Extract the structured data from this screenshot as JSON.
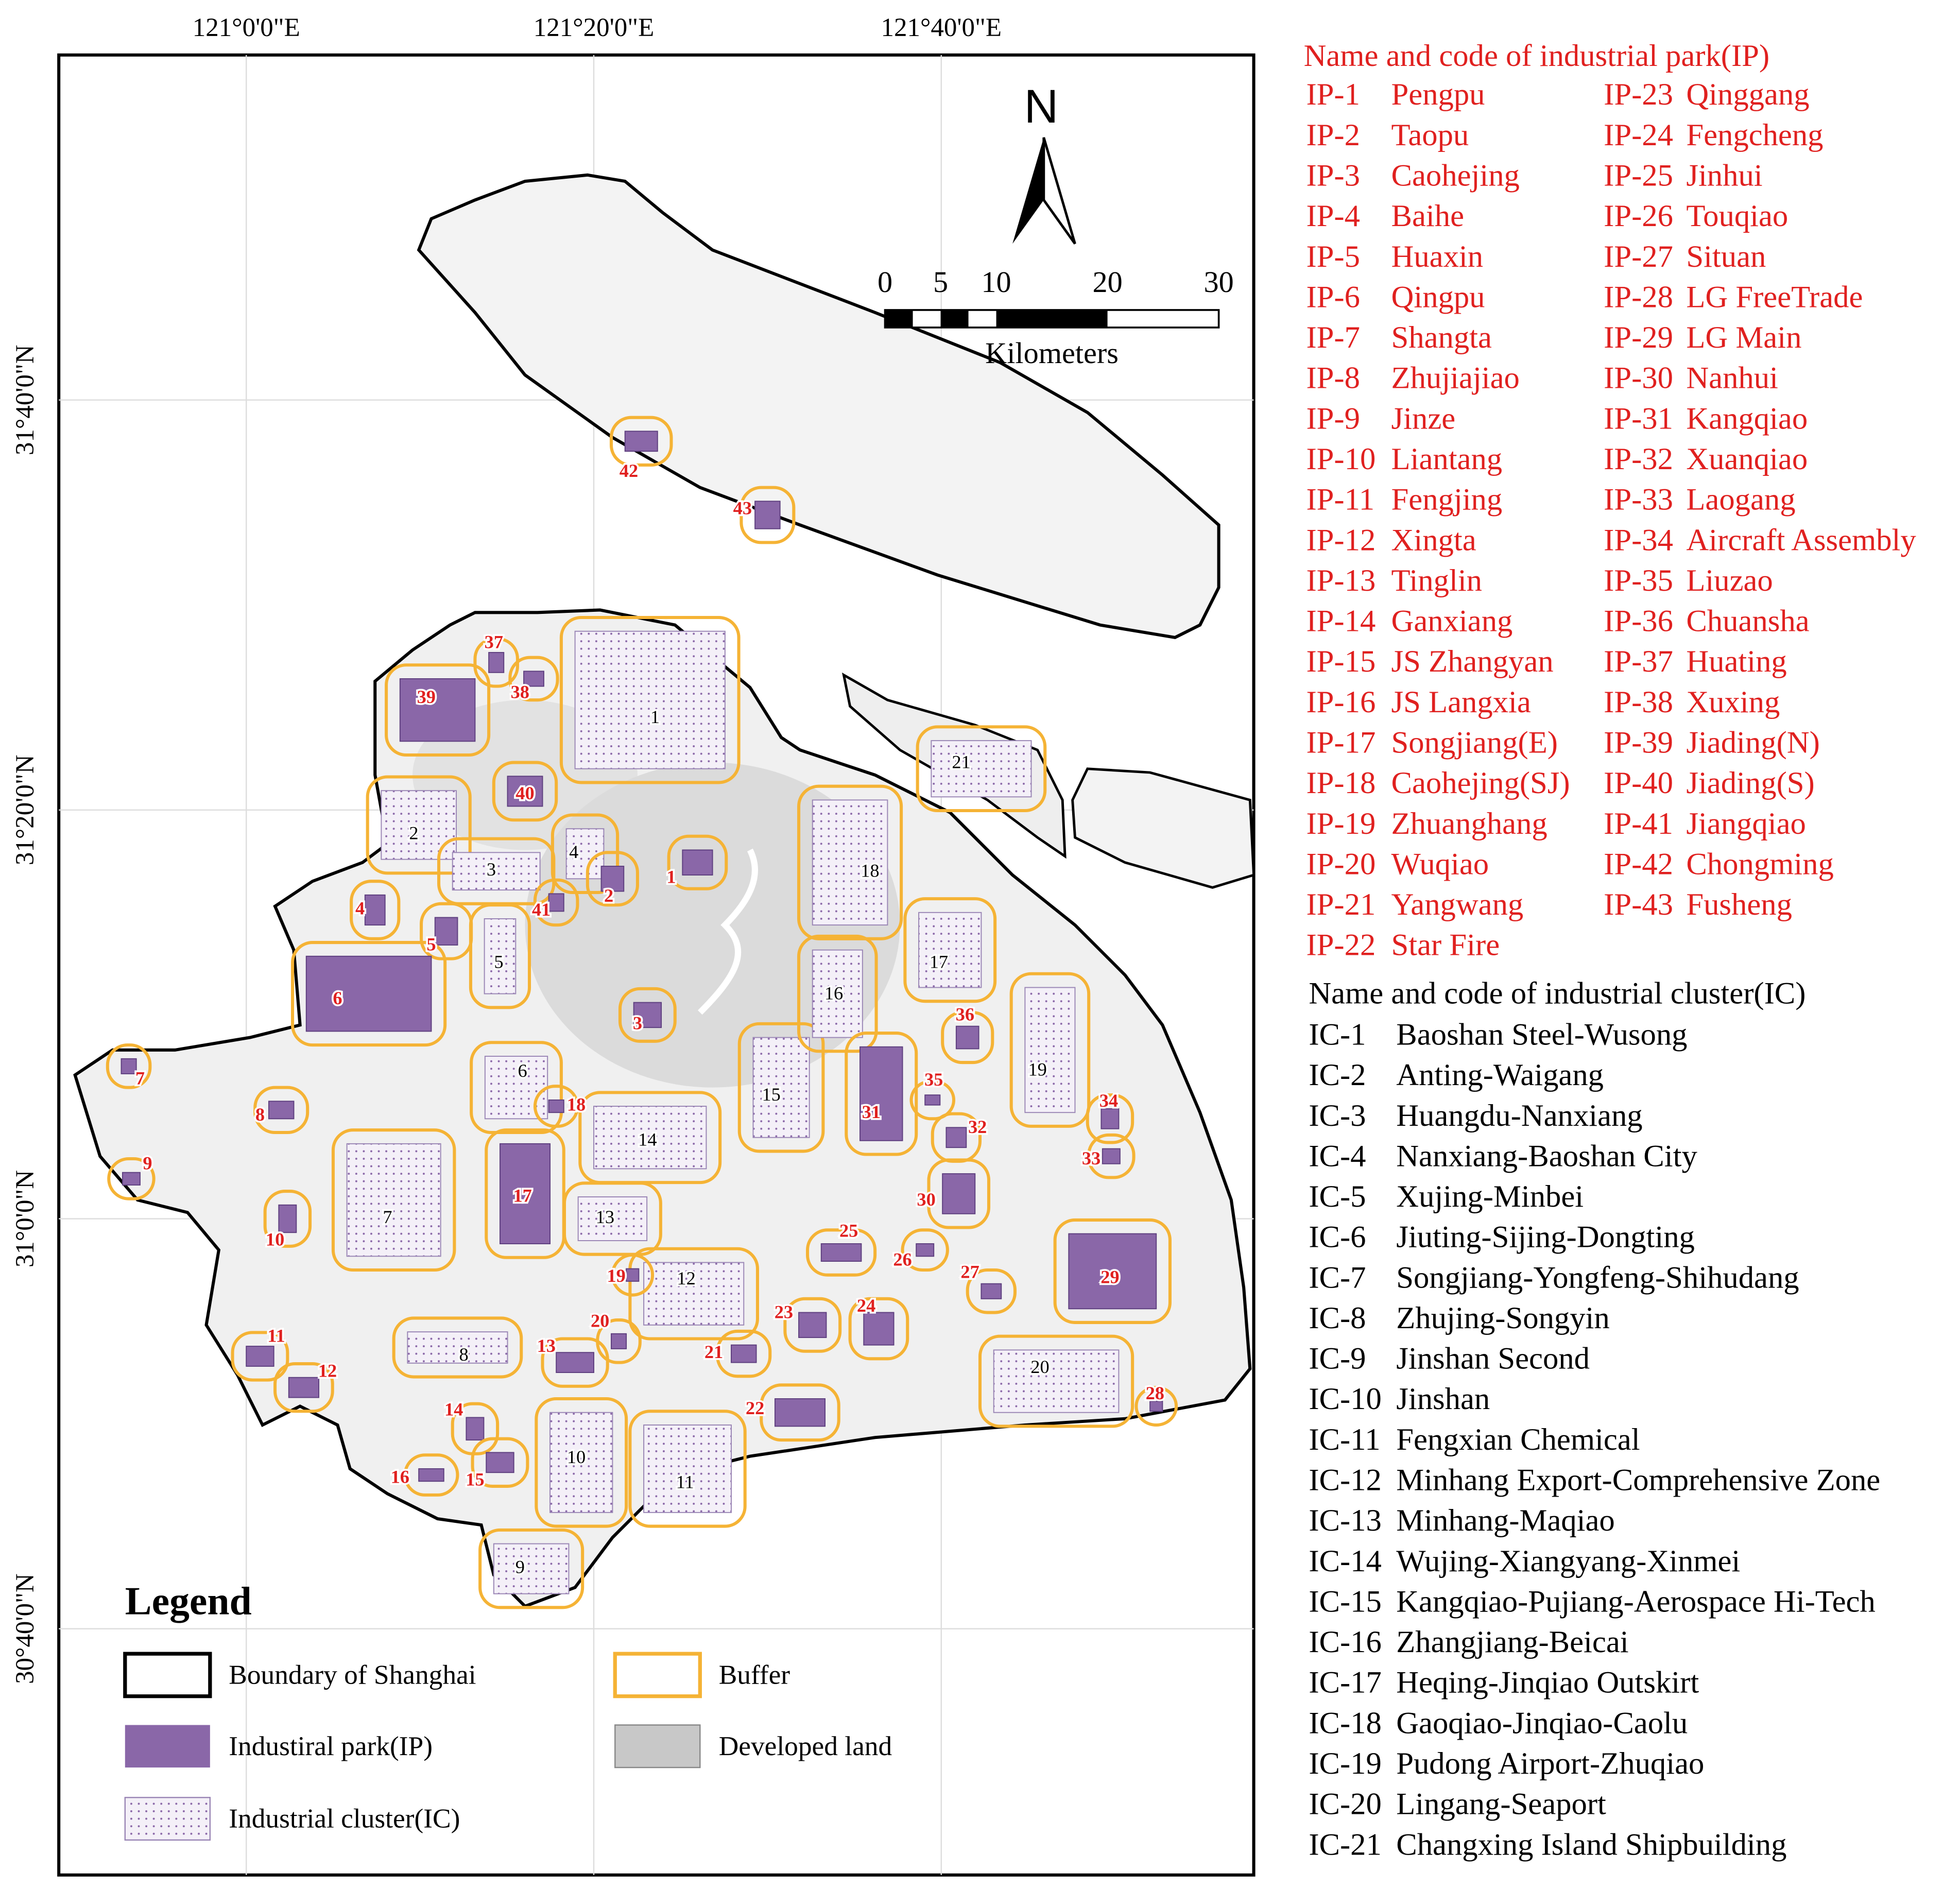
{
  "map": {
    "top_labels": [
      "121°0'0\"E",
      "121°20'0\"E",
      "121°40'0\"E"
    ],
    "left_labels": [
      "31°40'0\"N",
      "31°20'0\"N",
      "31°0'0\"N",
      "30°40'0\"N"
    ],
    "north": "N",
    "scale": {
      "ticks": [
        0,
        5,
        10,
        20,
        30
      ],
      "unit": "Kilometers"
    },
    "ip_labels": [
      "1",
      "2",
      "3",
      "4",
      "5",
      "6",
      "7",
      "8",
      "9",
      "10",
      "11",
      "12",
      "13",
      "14",
      "15",
      "16",
      "17",
      "18",
      "19",
      "20",
      "21",
      "22",
      "23",
      "24",
      "25",
      "26",
      "27",
      "28",
      "29",
      "30",
      "31",
      "32",
      "33",
      "34",
      "35",
      "36",
      "37",
      "38",
      "39",
      "40",
      "41",
      "42",
      "43"
    ],
    "ic_labels": [
      "1",
      "2",
      "3",
      "4",
      "5",
      "6",
      "7",
      "8",
      "9",
      "10",
      "11",
      "12",
      "13",
      "14",
      "15",
      "16",
      "17",
      "18",
      "19",
      "20",
      "21"
    ]
  },
  "legend": {
    "title": "Legend",
    "items": [
      "Boundary of Shanghai",
      "Buffer",
      "Industiral park(IP)",
      "Developed land",
      "Industrial cluster(IC)"
    ]
  },
  "ip_list": {
    "title": "Name and code of industrial park(IP)",
    "rows": [
      [
        "IP-1",
        "Pengpu"
      ],
      [
        "IP-2",
        "Taopu"
      ],
      [
        "IP-3",
        "Caohejing"
      ],
      [
        "IP-4",
        "Baihe"
      ],
      [
        "IP-5",
        "Huaxin"
      ],
      [
        "IP-6",
        "Qingpu"
      ],
      [
        "IP-7",
        "Shangta"
      ],
      [
        "IP-8",
        "Zhujiajiao"
      ],
      [
        "IP-9",
        "Jinze"
      ],
      [
        "IP-10",
        "Liantang"
      ],
      [
        "IP-11",
        "Fengjing"
      ],
      [
        "IP-12",
        "Xingta"
      ],
      [
        "IP-13",
        "Tinglin"
      ],
      [
        "IP-14",
        "Ganxiang"
      ],
      [
        "IP-15",
        "JS Zhangyan"
      ],
      [
        "IP-16",
        "JS Langxia"
      ],
      [
        "IP-17",
        "Songjiang(E)"
      ],
      [
        "IP-18",
        "Caohejing(SJ)"
      ],
      [
        "IP-19",
        "Zhuanghang"
      ],
      [
        "IP-20",
        "Wuqiao"
      ],
      [
        "IP-21",
        "Yangwang"
      ],
      [
        "IP-22",
        "Star Fire"
      ],
      [
        "IP-23",
        "Qinggang"
      ],
      [
        "IP-24",
        "Fengcheng"
      ],
      [
        "IP-25",
        "Jinhui"
      ],
      [
        "IP-26",
        "Touqiao"
      ],
      [
        "IP-27",
        "Situan"
      ],
      [
        "IP-28",
        "LG FreeTrade"
      ],
      [
        "IP-29",
        "LG Main"
      ],
      [
        "IP-30",
        "Nanhui"
      ],
      [
        "IP-31",
        "Kangqiao"
      ],
      [
        "IP-32",
        "Xuanqiao"
      ],
      [
        "IP-33",
        "Laogang"
      ],
      [
        "IP-34",
        "Aircraft Assembly"
      ],
      [
        "IP-35",
        "Liuzao"
      ],
      [
        "IP-36",
        "Chuansha"
      ],
      [
        "IP-37",
        "Huating"
      ],
      [
        "IP-38",
        "Xuxing"
      ],
      [
        "IP-39",
        "Jiading(N)"
      ],
      [
        "IP-40",
        "Jiading(S)"
      ],
      [
        "IP-41",
        "Jiangqiao"
      ],
      [
        "IP-42",
        "Chongming"
      ],
      [
        "IP-43",
        "Fusheng"
      ]
    ]
  },
  "ic_list": {
    "title": "Name and code of industrial cluster(IC)",
    "rows": [
      [
        "IC-1",
        "Baoshan Steel-Wusong"
      ],
      [
        "IC-2",
        "Anting-Waigang"
      ],
      [
        "IC-3",
        "Huangdu-Nanxiang"
      ],
      [
        "IC-4",
        "Nanxiang-Baoshan City"
      ],
      [
        "IC-5",
        "Xujing-Minbei"
      ],
      [
        "IC-6",
        "Jiuting-Sijing-Dongting"
      ],
      [
        "IC-7",
        "Songjiang-Yongfeng-Shihudang"
      ],
      [
        "IC-8",
        "Zhujing-Songyin"
      ],
      [
        "IC-9",
        "Jinshan Second"
      ],
      [
        "IC-10",
        "Jinshan"
      ],
      [
        "IC-11",
        "Fengxian Chemical"
      ],
      [
        "IC-12",
        "Minhang Export-Comprehensive Zone"
      ],
      [
        "IC-13",
        "Minhang-Maqiao"
      ],
      [
        "IC-14",
        "Wujing-Xiangyang-Xinmei"
      ],
      [
        "IC-15",
        "Kangqiao-Pujiang-Aerospace Hi-Tech"
      ],
      [
        "IC-16",
        "Zhangjiang-Beicai"
      ],
      [
        "IC-17",
        "Heqing-Jinqiao Outskirt"
      ],
      [
        "IC-18",
        "Gaoqiao-Jinqiao-Caolu"
      ],
      [
        "IC-19",
        "Pudong Airport-Zhuqiao"
      ],
      [
        "IC-20",
        "Lingang-Seaport"
      ],
      [
        "IC-21",
        "Changxing Island Shipbuilding"
      ]
    ]
  }
}
